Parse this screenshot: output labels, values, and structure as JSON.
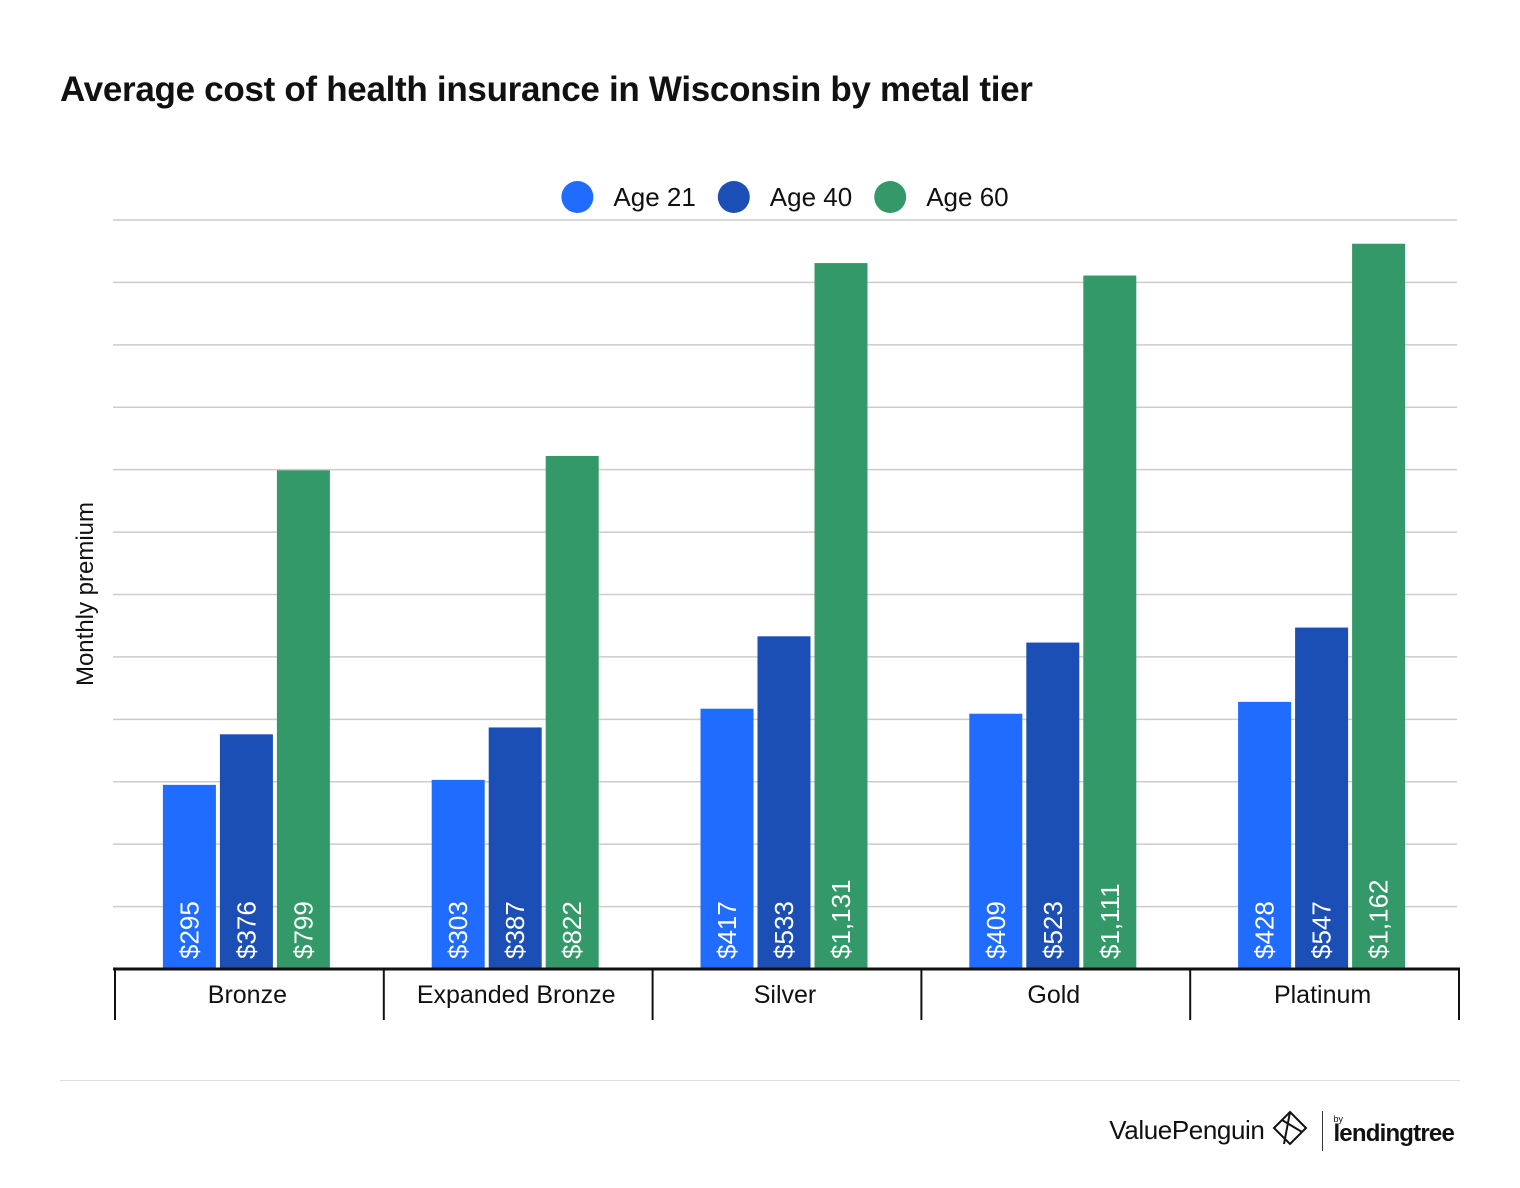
{
  "title": "Average cost of health insurance in Wisconsin by metal tier",
  "chart_data": {
    "type": "bar",
    "categories": [
      "Bronze",
      "Expanded Bronze",
      "Silver",
      "Gold",
      "Platinum"
    ],
    "series": [
      {
        "name": "Age 21",
        "color": "#1f6cff",
        "values": [
          295,
          303,
          417,
          409,
          428
        ],
        "labels": [
          "$295",
          "$303",
          "$417",
          "$409",
          "$428"
        ]
      },
      {
        "name": "Age 40",
        "color": "#1b4fb5",
        "values": [
          376,
          387,
          533,
          523,
          547
        ],
        "labels": [
          "$376",
          "$387",
          "$533",
          "$523",
          "$547"
        ]
      },
      {
        "name": "Age 60",
        "color": "#339969",
        "values": [
          799,
          822,
          1131,
          1111,
          1162
        ],
        "labels": [
          "$799",
          "$822",
          "$1,131",
          "$1,111",
          "$1,162"
        ]
      }
    ],
    "ylabel": "Monthly premium",
    "ylim": [
      0,
      1200
    ],
    "y_gridline_step": 100,
    "y_tick_labels_shown": false,
    "legend_position": "top-center",
    "grid": true
  },
  "footer": {
    "brand": "ValuePenguin",
    "by": "by",
    "partner": "lendingtree"
  },
  "colors": {
    "age21": "#1f6cff",
    "age40": "#1b4fb5",
    "age60": "#339969",
    "grid": "#cccccc",
    "axis": "#111111"
  },
  "icons": [
    "valuepenguin-logo-icon"
  ]
}
